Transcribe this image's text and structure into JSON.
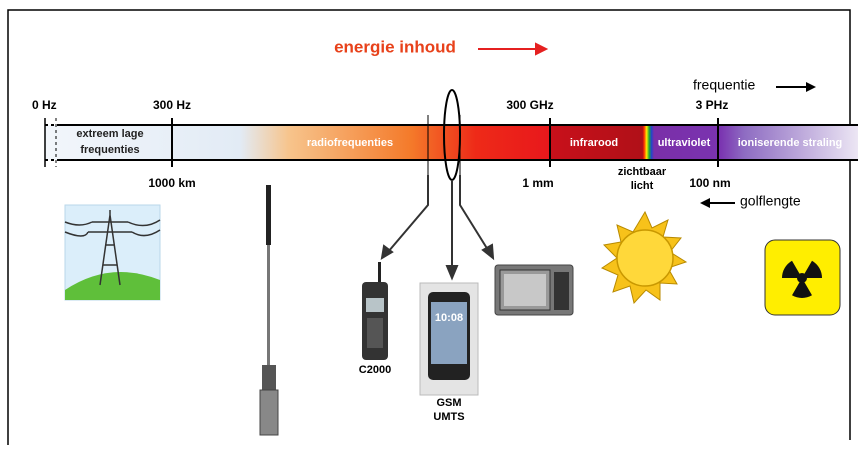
{
  "title": "energie inhoud",
  "axis": {
    "frequency_label": "frequentie",
    "wavelength_label": "golflengte"
  },
  "frequency_ticks": [
    "0 Hz",
    "300 Hz",
    "300 GHz",
    "3 PHz"
  ],
  "wavelength_ticks": [
    "1000 km",
    "1 mm",
    "100 nm"
  ],
  "bands": {
    "elf": [
      "extreem lage",
      "frequenties"
    ],
    "radio": "radiofrequenties",
    "infrared": "infrarood",
    "visible": [
      "zichtbaar",
      "licht"
    ],
    "ultraviolet": "ultraviolet",
    "ionizing": "ioniserende straling"
  },
  "devices": {
    "radio": "C2000",
    "phone": [
      "GSM",
      "UMTS"
    ]
  }
}
